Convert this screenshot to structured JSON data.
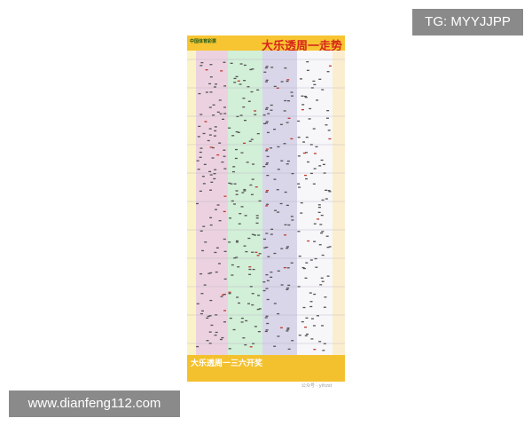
{
  "watermarks": {
    "top_right": "TG: MYYJJPP",
    "bottom_left": "www.dianfeng112.com"
  },
  "poster": {
    "logo_text": "中国体育彩票",
    "title": "大乐透周一走势",
    "footer_text": "大乐透周一三六开奖",
    "wechat_label": "公众号 · yihzst",
    "zone_colors": [
      "#ecd2e0",
      "#d2efd8",
      "#d9d6ea",
      "#f7f7fa"
    ],
    "accent": "#f7c531",
    "title_color": "#d6261a"
  }
}
